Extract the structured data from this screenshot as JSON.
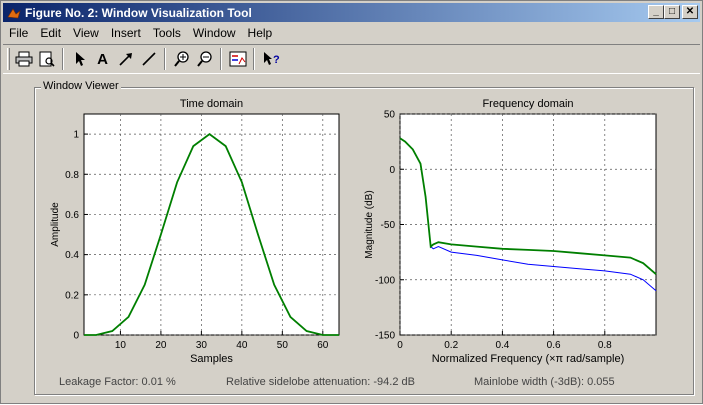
{
  "window": {
    "title": "Figure No. 2: Window Visualization Tool",
    "minimize": "_",
    "maximize": "□",
    "close": "✕"
  },
  "menu": [
    "File",
    "Edit",
    "View",
    "Insert",
    "Tools",
    "Window",
    "Help"
  ],
  "toolbar": {
    "icons": [
      "print-icon",
      "print-preview-icon",
      "select-arrow-icon",
      "insert-text-icon",
      "insert-arrow-icon",
      "insert-line-icon",
      "zoom-in-icon",
      "zoom-out-icon",
      "legend-icon",
      "whats-this-help-icon"
    ],
    "text_glyph": "A"
  },
  "panel": {
    "label": "Window Viewer"
  },
  "status": {
    "leakage": "Leakage Factor: 0.01 %",
    "sidelobe": "Relative sidelobe attenuation: -94.2 dB",
    "mainlobe": "Mainlobe width (-3dB): 0.055"
  },
  "colors": {
    "accent_title": "#0a246a",
    "series_blue": "#0000ff",
    "series_green": "#007f00"
  },
  "chart_data": [
    {
      "type": "line",
      "title": "Time domain",
      "xlabel": "Samples",
      "ylabel": "Amplitude",
      "xlim": [
        1,
        64
      ],
      "ylim": [
        0,
        1.1
      ],
      "xticks": [
        10,
        20,
        30,
        40,
        50,
        60
      ],
      "yticks": [
        0,
        0.2,
        0.4,
        0.6,
        0.8,
        1
      ],
      "grid": true,
      "series": [
        {
          "color": "#0000ff",
          "x": [
            1,
            4,
            8,
            12,
            16,
            20,
            24,
            28,
            32,
            36,
            40,
            44,
            48,
            52,
            56,
            60,
            64
          ],
          "y": [
            0,
            0,
            0.02,
            0.09,
            0.25,
            0.5,
            0.76,
            0.94,
            1,
            0.94,
            0.76,
            0.5,
            0.25,
            0.09,
            0.02,
            0,
            0
          ]
        },
        {
          "color": "#007f00",
          "x": [
            1,
            4,
            8,
            12,
            16,
            20,
            24,
            28,
            32,
            36,
            40,
            44,
            48,
            52,
            56,
            60,
            64
          ],
          "y": [
            0,
            0,
            0.02,
            0.09,
            0.25,
            0.5,
            0.76,
            0.94,
            1,
            0.94,
            0.76,
            0.5,
            0.25,
            0.09,
            0.02,
            0,
            0
          ]
        }
      ]
    },
    {
      "type": "line",
      "title": "Frequency domain",
      "xlabel": "Normalized Frequency  (×π rad/sample)",
      "ylabel": "Magnitude (dB)",
      "xlim": [
        0,
        1
      ],
      "ylim": [
        -150,
        50
      ],
      "xticks": [
        0,
        0.2,
        0.4,
        0.6,
        0.8
      ],
      "yticks": [
        50,
        0,
        -50,
        -100,
        -150
      ],
      "grid": true,
      "series": [
        {
          "color": "#0000ff",
          "x": [
            0,
            0.02,
            0.05,
            0.08,
            0.1,
            0.12,
            0.13,
            0.15,
            0.2,
            0.3,
            0.4,
            0.5,
            0.6,
            0.7,
            0.8,
            0.9,
            0.95,
            1
          ],
          "y": [
            28,
            25,
            18,
            5,
            -25,
            -70,
            -72,
            -70,
            -75,
            -78,
            -82,
            -86,
            -88,
            -90,
            -92,
            -95,
            -100,
            -110
          ]
        },
        {
          "color": "#007f00",
          "x": [
            0,
            0.02,
            0.05,
            0.08,
            0.1,
            0.12,
            0.13,
            0.15,
            0.2,
            0.3,
            0.4,
            0.5,
            0.6,
            0.7,
            0.8,
            0.9,
            0.95,
            1
          ],
          "y": [
            28,
            25,
            18,
            5,
            -25,
            -70,
            -68,
            -66,
            -68,
            -70,
            -72,
            -73,
            -74,
            -76,
            -78,
            -80,
            -85,
            -95
          ]
        }
      ]
    }
  ]
}
